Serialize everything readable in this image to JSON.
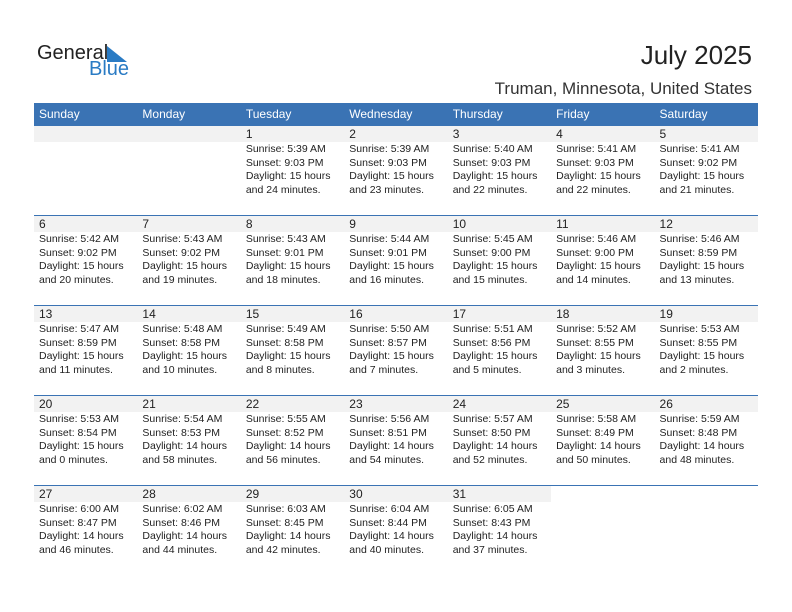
{
  "logo": {
    "text1": "General",
    "text2": "Blue"
  },
  "title": "July 2025",
  "location": "Truman, Minnesota, United States",
  "weekdays": [
    "Sunday",
    "Monday",
    "Tuesday",
    "Wednesday",
    "Thursday",
    "Friday",
    "Saturday"
  ],
  "first_weekday_index": 2,
  "days": [
    {
      "day": "1",
      "sunrise": "Sunrise: 5:39 AM",
      "sunset": "Sunset: 9:03 PM",
      "daylight1": "Daylight: 15 hours",
      "daylight2": "and 24 minutes."
    },
    {
      "day": "2",
      "sunrise": "Sunrise: 5:39 AM",
      "sunset": "Sunset: 9:03 PM",
      "daylight1": "Daylight: 15 hours",
      "daylight2": "and 23 minutes."
    },
    {
      "day": "3",
      "sunrise": "Sunrise: 5:40 AM",
      "sunset": "Sunset: 9:03 PM",
      "daylight1": "Daylight: 15 hours",
      "daylight2": "and 22 minutes."
    },
    {
      "day": "4",
      "sunrise": "Sunrise: 5:41 AM",
      "sunset": "Sunset: 9:03 PM",
      "daylight1": "Daylight: 15 hours",
      "daylight2": "and 22 minutes."
    },
    {
      "day": "5",
      "sunrise": "Sunrise: 5:41 AM",
      "sunset": "Sunset: 9:02 PM",
      "daylight1": "Daylight: 15 hours",
      "daylight2": "and 21 minutes."
    },
    {
      "day": "6",
      "sunrise": "Sunrise: 5:42 AM",
      "sunset": "Sunset: 9:02 PM",
      "daylight1": "Daylight: 15 hours",
      "daylight2": "and 20 minutes."
    },
    {
      "day": "7",
      "sunrise": "Sunrise: 5:43 AM",
      "sunset": "Sunset: 9:02 PM",
      "daylight1": "Daylight: 15 hours",
      "daylight2": "and 19 minutes."
    },
    {
      "day": "8",
      "sunrise": "Sunrise: 5:43 AM",
      "sunset": "Sunset: 9:01 PM",
      "daylight1": "Daylight: 15 hours",
      "daylight2": "and 18 minutes."
    },
    {
      "day": "9",
      "sunrise": "Sunrise: 5:44 AM",
      "sunset": "Sunset: 9:01 PM",
      "daylight1": "Daylight: 15 hours",
      "daylight2": "and 16 minutes."
    },
    {
      "day": "10",
      "sunrise": "Sunrise: 5:45 AM",
      "sunset": "Sunset: 9:00 PM",
      "daylight1": "Daylight: 15 hours",
      "daylight2": "and 15 minutes."
    },
    {
      "day": "11",
      "sunrise": "Sunrise: 5:46 AM",
      "sunset": "Sunset: 9:00 PM",
      "daylight1": "Daylight: 15 hours",
      "daylight2": "and 14 minutes."
    },
    {
      "day": "12",
      "sunrise": "Sunrise: 5:46 AM",
      "sunset": "Sunset: 8:59 PM",
      "daylight1": "Daylight: 15 hours",
      "daylight2": "and 13 minutes."
    },
    {
      "day": "13",
      "sunrise": "Sunrise: 5:47 AM",
      "sunset": "Sunset: 8:59 PM",
      "daylight1": "Daylight: 15 hours",
      "daylight2": "and 11 minutes."
    },
    {
      "day": "14",
      "sunrise": "Sunrise: 5:48 AM",
      "sunset": "Sunset: 8:58 PM",
      "daylight1": "Daylight: 15 hours",
      "daylight2": "and 10 minutes."
    },
    {
      "day": "15",
      "sunrise": "Sunrise: 5:49 AM",
      "sunset": "Sunset: 8:58 PM",
      "daylight1": "Daylight: 15 hours",
      "daylight2": "and 8 minutes."
    },
    {
      "day": "16",
      "sunrise": "Sunrise: 5:50 AM",
      "sunset": "Sunset: 8:57 PM",
      "daylight1": "Daylight: 15 hours",
      "daylight2": "and 7 minutes."
    },
    {
      "day": "17",
      "sunrise": "Sunrise: 5:51 AM",
      "sunset": "Sunset: 8:56 PM",
      "daylight1": "Daylight: 15 hours",
      "daylight2": "and 5 minutes."
    },
    {
      "day": "18",
      "sunrise": "Sunrise: 5:52 AM",
      "sunset": "Sunset: 8:55 PM",
      "daylight1": "Daylight: 15 hours",
      "daylight2": "and 3 minutes."
    },
    {
      "day": "19",
      "sunrise": "Sunrise: 5:53 AM",
      "sunset": "Sunset: 8:55 PM",
      "daylight1": "Daylight: 15 hours",
      "daylight2": "and 2 minutes."
    },
    {
      "day": "20",
      "sunrise": "Sunrise: 5:53 AM",
      "sunset": "Sunset: 8:54 PM",
      "daylight1": "Daylight: 15 hours",
      "daylight2": "and 0 minutes."
    },
    {
      "day": "21",
      "sunrise": "Sunrise: 5:54 AM",
      "sunset": "Sunset: 8:53 PM",
      "daylight1": "Daylight: 14 hours",
      "daylight2": "and 58 minutes."
    },
    {
      "day": "22",
      "sunrise": "Sunrise: 5:55 AM",
      "sunset": "Sunset: 8:52 PM",
      "daylight1": "Daylight: 14 hours",
      "daylight2": "and 56 minutes."
    },
    {
      "day": "23",
      "sunrise": "Sunrise: 5:56 AM",
      "sunset": "Sunset: 8:51 PM",
      "daylight1": "Daylight: 14 hours",
      "daylight2": "and 54 minutes."
    },
    {
      "day": "24",
      "sunrise": "Sunrise: 5:57 AM",
      "sunset": "Sunset: 8:50 PM",
      "daylight1": "Daylight: 14 hours",
      "daylight2": "and 52 minutes."
    },
    {
      "day": "25",
      "sunrise": "Sunrise: 5:58 AM",
      "sunset": "Sunset: 8:49 PM",
      "daylight1": "Daylight: 14 hours",
      "daylight2": "and 50 minutes."
    },
    {
      "day": "26",
      "sunrise": "Sunrise: 5:59 AM",
      "sunset": "Sunset: 8:48 PM",
      "daylight1": "Daylight: 14 hours",
      "daylight2": "and 48 minutes."
    },
    {
      "day": "27",
      "sunrise": "Sunrise: 6:00 AM",
      "sunset": "Sunset: 8:47 PM",
      "daylight1": "Daylight: 14 hours",
      "daylight2": "and 46 minutes."
    },
    {
      "day": "28",
      "sunrise": "Sunrise: 6:02 AM",
      "sunset": "Sunset: 8:46 PM",
      "daylight1": "Daylight: 14 hours",
      "daylight2": "and 44 minutes."
    },
    {
      "day": "29",
      "sunrise": "Sunrise: 6:03 AM",
      "sunset": "Sunset: 8:45 PM",
      "daylight1": "Daylight: 14 hours",
      "daylight2": "and 42 minutes."
    },
    {
      "day": "30",
      "sunrise": "Sunrise: 6:04 AM",
      "sunset": "Sunset: 8:44 PM",
      "daylight1": "Daylight: 14 hours",
      "daylight2": "and 40 minutes."
    },
    {
      "day": "31",
      "sunrise": "Sunrise: 6:05 AM",
      "sunset": "Sunset: 8:43 PM",
      "daylight1": "Daylight: 14 hours",
      "daylight2": "and 37 minutes."
    }
  ],
  "colors": {
    "header": "#3a73b4",
    "logo_blue": "#2a7bc4",
    "day_band": "#f2f2f2"
  }
}
